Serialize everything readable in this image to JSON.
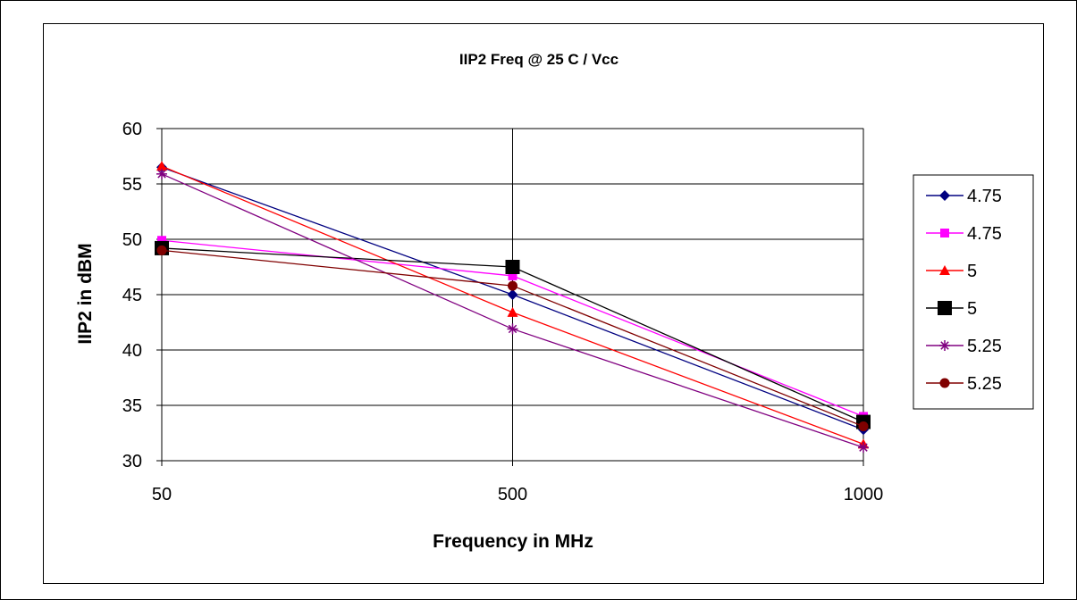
{
  "chart_data": {
    "type": "line",
    "title": "IIP2 Freq @ 25 C / Vcc",
    "xlabel": "Frequency in MHz",
    "ylabel": "IIP2 in dBM",
    "categories": [
      "50",
      "500",
      "1000"
    ],
    "ylim": [
      30,
      60
    ],
    "yticks": [
      30,
      35,
      40,
      45,
      50,
      55,
      60
    ],
    "grid": true,
    "legend_position": "right",
    "series": [
      {
        "name": "4.75",
        "values": [
          56.5,
          45.0,
          32.8
        ],
        "color": "#000080",
        "marker": "diamond"
      },
      {
        "name": "4.75",
        "values": [
          49.9,
          46.7,
          34.0
        ],
        "color": "#ff00ff",
        "marker": "square"
      },
      {
        "name": "5",
        "values": [
          56.6,
          43.4,
          31.5
        ],
        "color": "#ff0000",
        "marker": "triangle"
      },
      {
        "name": "5",
        "values": [
          49.2,
          47.5,
          33.5
        ],
        "color": "#000000",
        "marker": "square-large"
      },
      {
        "name": "5.25",
        "values": [
          55.9,
          41.9,
          31.2
        ],
        "color": "#800080",
        "marker": "asterisk"
      },
      {
        "name": "5.25",
        "values": [
          49.0,
          45.8,
          33.1
        ],
        "color": "#800000",
        "marker": "circle"
      }
    ]
  }
}
